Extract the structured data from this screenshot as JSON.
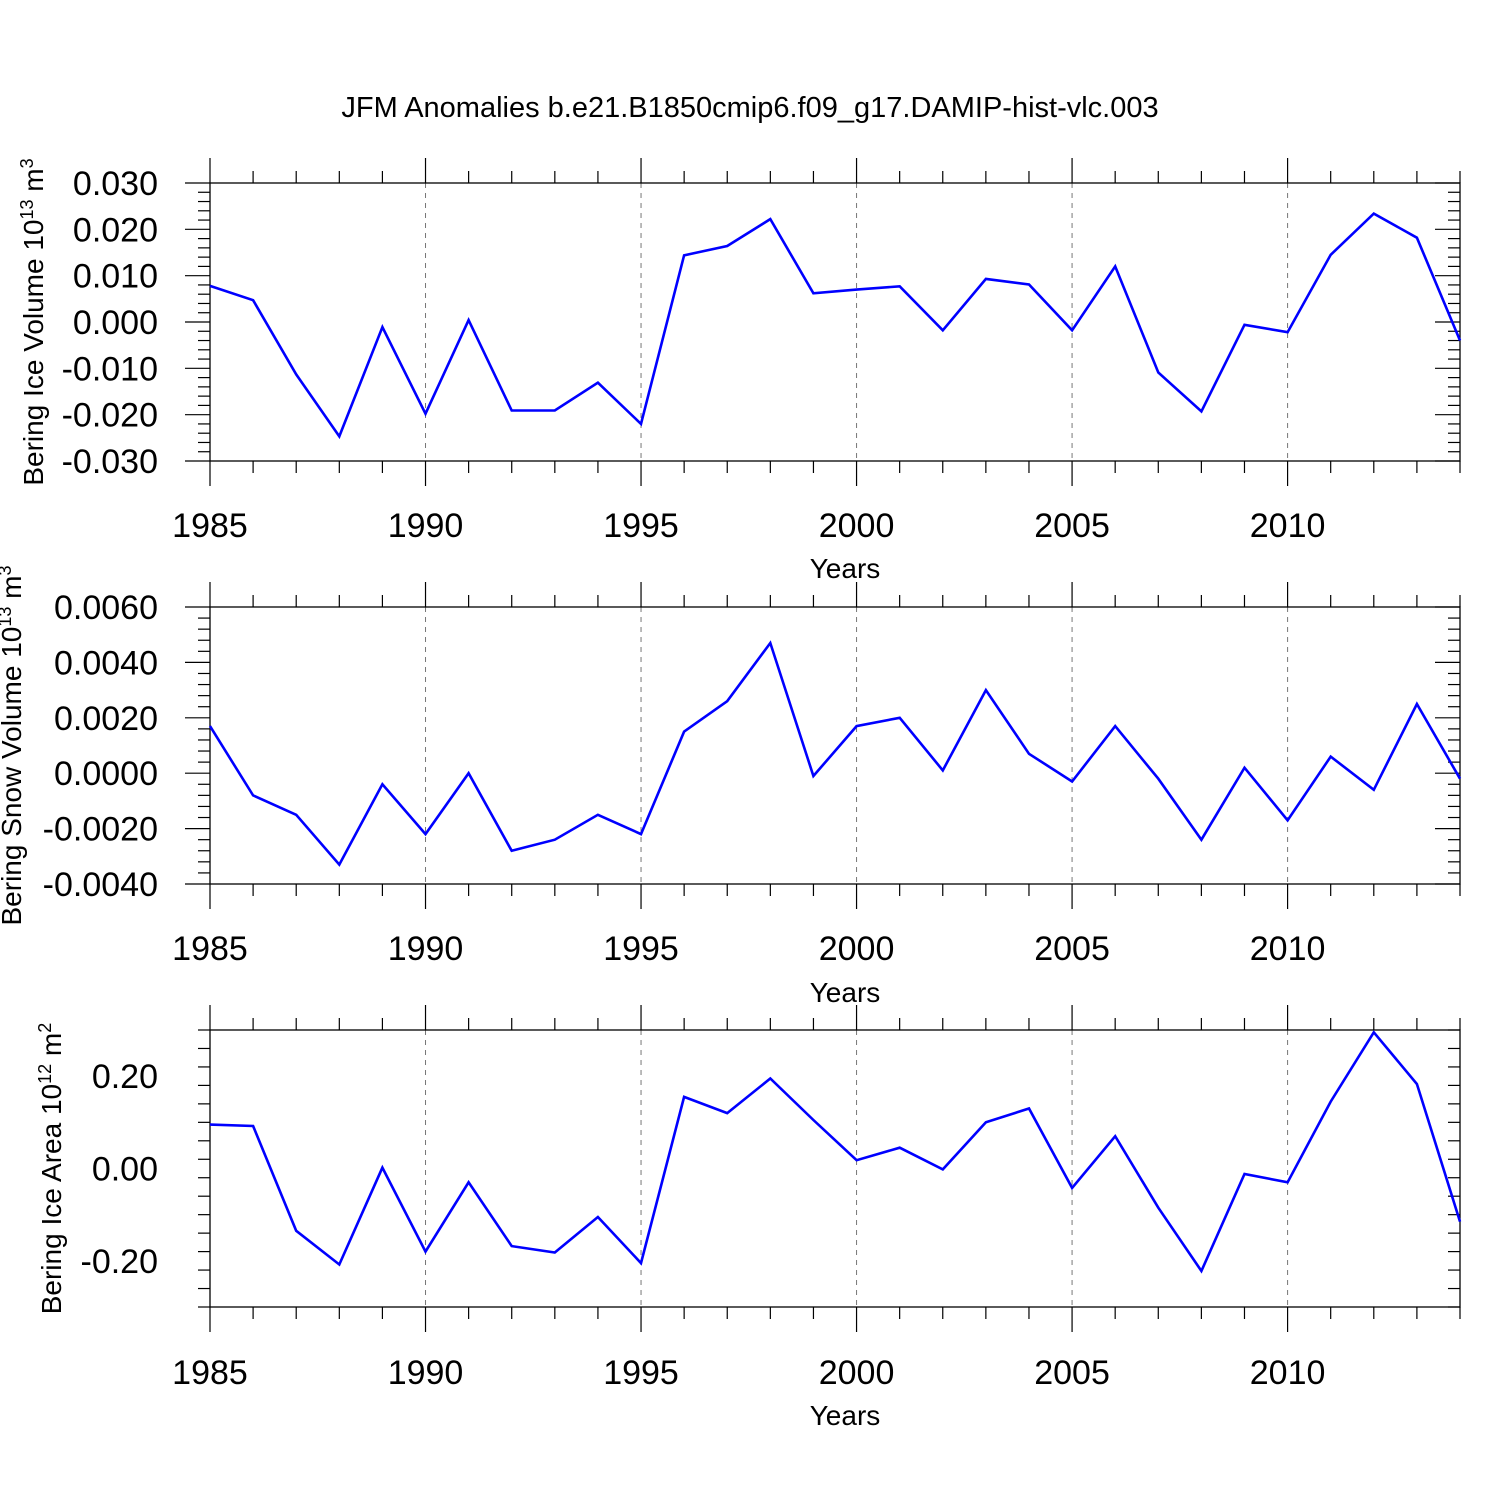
{
  "title": "JFM Anomalies b.e21.B1850cmip6.f09_g17.DAMIP-hist-vlc.003",
  "line_color": "#0000ff",
  "chart_data": [
    {
      "type": "line",
      "title": "JFM Anomalies b.e21.B1850cmip6.f09_g17.DAMIP-hist-vlc.003",
      "xlabel": "Years",
      "ylabel": "Bering Ice Volume 10",
      "ylabel_exp": "13",
      "ylabel_unit": " m",
      "ylabel_unit_exp": "3",
      "xlim": [
        1985,
        2014
      ],
      "ylim": [
        -0.03,
        0.03
      ],
      "x_ticks": [
        "1985",
        "1990",
        "1995",
        "2000",
        "2005",
        "2010"
      ],
      "y_ticks": [
        {
          "value": 0.03,
          "label": "0.030"
        },
        {
          "value": 0.02,
          "label": "0.020"
        },
        {
          "value": 0.01,
          "label": "0.010"
        },
        {
          "value": 0.0,
          "label": "0.000"
        },
        {
          "value": -0.01,
          "label": "-0.010"
        },
        {
          "value": -0.02,
          "label": "-0.020"
        },
        {
          "value": -0.03,
          "label": "-0.030"
        }
      ],
      "grid": "vertical dashed at labeled years",
      "x": [
        1985,
        1986,
        1987,
        1988,
        1989,
        1990,
        1991,
        1992,
        1993,
        1994,
        1995,
        1996,
        1997,
        1998,
        1999,
        2000,
        2001,
        2002,
        2003,
        2004,
        2005,
        2006,
        2007,
        2008,
        2009,
        2010,
        2011,
        2012,
        2013,
        2014
      ],
      "values": [
        0.0078,
        0.0047,
        -0.0113,
        -0.0247,
        -0.0011,
        -0.0198,
        0.0004,
        -0.0191,
        -0.0191,
        -0.0131,
        -0.022,
        0.0144,
        0.0164,
        0.0222,
        0.0062,
        0.007,
        0.0077,
        -0.0018,
        0.0093,
        0.0081,
        -0.0018,
        0.012,
        -0.0109,
        -0.0193,
        -0.0006,
        -0.0022,
        0.0145,
        0.0234,
        0.0182,
        -0.004
      ]
    },
    {
      "type": "line",
      "xlabel": "Years",
      "ylabel": "Bering Snow Volume 10",
      "ylabel_exp": "13",
      "ylabel_unit": " m",
      "ylabel_unit_exp": "3",
      "xlim": [
        1985,
        2014
      ],
      "ylim": [
        -0.004,
        0.006
      ],
      "x_ticks": [
        "1985",
        "1990",
        "1995",
        "2000",
        "2005",
        "2010"
      ],
      "y_ticks": [
        {
          "value": 0.006,
          "label": "0.0060"
        },
        {
          "value": 0.004,
          "label": "0.0040"
        },
        {
          "value": 0.002,
          "label": "0.0020"
        },
        {
          "value": 0.0,
          "label": "0.0000"
        },
        {
          "value": -0.002,
          "label": "-0.0020"
        },
        {
          "value": -0.004,
          "label": "-0.0040"
        }
      ],
      "grid": "vertical dashed at labeled years",
      "x": [
        1985,
        1986,
        1987,
        1988,
        1989,
        1990,
        1991,
        1992,
        1993,
        1994,
        1995,
        1996,
        1997,
        1998,
        1999,
        2000,
        2001,
        2002,
        2003,
        2004,
        2005,
        2006,
        2007,
        2008,
        2009,
        2010,
        2011,
        2012,
        2013,
        2014
      ],
      "values": [
        0.0017,
        -0.0008,
        -0.0015,
        -0.0033,
        -0.0004,
        -0.0022,
        0.0,
        -0.0028,
        -0.0024,
        -0.0015,
        -0.0022,
        0.0015,
        0.0026,
        0.0047,
        -0.0001,
        0.0017,
        0.002,
        0.0001,
        0.003,
        0.0007,
        -0.0003,
        0.0017,
        -0.0002,
        -0.0024,
        0.0002,
        -0.0017,
        0.0006,
        -0.0006,
        0.0025,
        -0.0002
      ]
    },
    {
      "type": "line",
      "xlabel": "Years",
      "ylabel": "Bering Ice Area 10",
      "ylabel_exp": "12",
      "ylabel_unit": " m",
      "ylabel_unit_exp": "2",
      "xlim": [
        1985,
        2014
      ],
      "ylim": [
        -0.3,
        0.3
      ],
      "x_ticks": [
        "1985",
        "1990",
        "1995",
        "2000",
        "2005",
        "2010"
      ],
      "y_ticks": [
        {
          "value": 0.2,
          "label": "0.20"
        },
        {
          "value": 0.0,
          "label": "0.00"
        },
        {
          "value": -0.2,
          "label": "-0.20"
        }
      ],
      "grid": "vertical dashed at labeled years",
      "x": [
        1985,
        1986,
        1987,
        1988,
        1989,
        1990,
        1991,
        1992,
        1993,
        1994,
        1995,
        1996,
        1997,
        1998,
        1999,
        2000,
        2001,
        2002,
        2003,
        2004,
        2005,
        2006,
        2007,
        2008,
        2009,
        2010,
        2011,
        2012,
        2013,
        2014
      ],
      "values": [
        0.095,
        0.092,
        -0.135,
        -0.208,
        0.002,
        -0.18,
        -0.03,
        -0.168,
        -0.182,
        -0.105,
        -0.205,
        0.155,
        0.12,
        0.195,
        0.105,
        0.018,
        0.045,
        -0.002,
        0.1,
        0.13,
        -0.042,
        0.07,
        -0.085,
        -0.222,
        -0.012,
        -0.03,
        0.145,
        0.295,
        0.183,
        -0.115
      ]
    }
  ]
}
